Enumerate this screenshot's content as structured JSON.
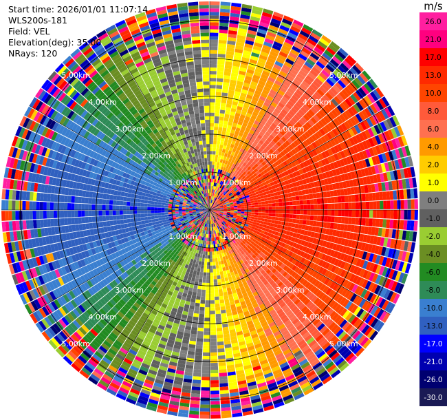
{
  "header": {
    "start_time": "Start time: 2026/01/01 11:07:14",
    "station": "WLS200s-181",
    "field": "Field: VEL",
    "elevation": "Elevation(deg): 35.00",
    "nrays": "NRays: 120"
  },
  "colorbar": {
    "unit": "m/s",
    "labels": [
      "26.0",
      "21.0",
      "17.0",
      "13.0",
      "10.0",
      "8.0",
      "6.0",
      "4.0",
      "2.0",
      "1.0",
      "0.0",
      "-1.0",
      "-2.0",
      "-4.0",
      "-6.0",
      "-8.0",
      "-10.0",
      "-13.0",
      "-17.0",
      "-21.0",
      "-26.0",
      "-30.0"
    ],
    "colors": [
      "#ff1fa0",
      "#ff007f",
      "#ff0000",
      "#ff2a00",
      "#ff4500",
      "#ff5a3a",
      "#ff7050",
      "#ff9a00",
      "#ffcc00",
      "#ffff00",
      "#7f7f7f",
      "#606060",
      "#9acd32",
      "#6b8e23",
      "#228b22",
      "#2e8b57",
      "#3a7fd0",
      "#3060c0",
      "#0000ff",
      "#0000b0",
      "#000070",
      "#1a1a55"
    ]
  },
  "chart_data": {
    "type": "heatmap",
    "projection": "polar PPI",
    "field": "VEL",
    "nrays": 120,
    "range_ring_labels": [
      "1.00km",
      "2.00km",
      "3.00km",
      "4.00km",
      "5.00km"
    ],
    "max_range_km": 5.5,
    "azimuth_pattern": [
      {
        "azimuth_deg": 0,
        "velocity_ms": 0.0
      },
      {
        "azimuth_deg": 20,
        "velocity_ms": 2.0
      },
      {
        "azimuth_deg": 45,
        "velocity_ms": 8.0
      },
      {
        "azimuth_deg": 90,
        "velocity_ms": 13.0
      },
      {
        "azimuth_deg": 135,
        "velocity_ms": 8.0
      },
      {
        "azimuth_deg": 160,
        "velocity_ms": 2.0
      },
      {
        "azimuth_deg": 180,
        "velocity_ms": 0.0
      },
      {
        "azimuth_deg": 200,
        "velocity_ms": -2.0
      },
      {
        "azimuth_deg": 225,
        "velocity_ms": -8.0
      },
      {
        "azimuth_deg": 270,
        "velocity_ms": -17.0
      },
      {
        "azimuth_deg": 315,
        "velocity_ms": -8.0
      },
      {
        "azimuth_deg": 340,
        "velocity_ms": -2.0
      }
    ],
    "noise_inner_km": 1.1,
    "noise_outer_km": 4.2
  }
}
